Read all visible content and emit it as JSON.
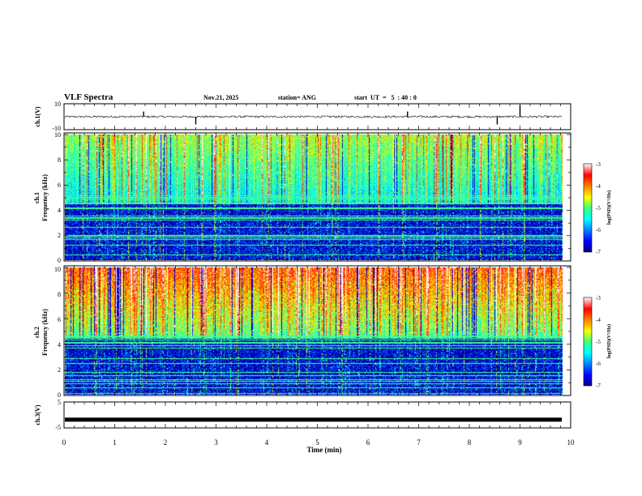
{
  "header": {
    "title": "VLF Spectra",
    "date": "Nov.21, 2025",
    "station": "station= ANG",
    "start": "start  UT  =   5  : 40 : 0"
  },
  "chart_data": [
    {
      "type": "line",
      "name": "ch1-waveform",
      "ylabel": "ch.1(V)",
      "ylim": [
        -10,
        10
      ],
      "yticks": [
        "10",
        "-10"
      ],
      "xlim": [
        0,
        10
      ],
      "baseline": 0,
      "spikes_min": [
        1.57,
        2.6,
        6.78,
        8.55,
        9.0
      ]
    },
    {
      "type": "heatmap",
      "name": "ch1-spectrogram",
      "ylabel": "ch.1",
      "ylabel2": "Frequency (kHz)",
      "ylim": [
        0,
        10
      ],
      "yticks": [
        "0",
        "2",
        "4",
        "6",
        "8",
        "10"
      ],
      "xlim": [
        0,
        9.83
      ],
      "colorbar": {
        "label": "log(PSD)(V²/Hz)",
        "range": [
          -7,
          -3
        ],
        "ticks": [
          "-3",
          "-4",
          "-5",
          "-6",
          "-7"
        ]
      }
    },
    {
      "type": "heatmap",
      "name": "ch2-spectrogram",
      "ylabel": "ch.2",
      "ylabel2": "Frequency (kHz)",
      "ylim": [
        0,
        10
      ],
      "yticks": [
        "0",
        "2",
        "4",
        "6",
        "8",
        "10"
      ],
      "xlim": [
        0,
        9.83
      ],
      "colorbar": {
        "label": "log(PSD)(V²/Hz)",
        "range": [
          -7,
          -3
        ],
        "ticks": [
          "-3",
          "-4",
          "-5",
          "-6",
          "-7"
        ]
      }
    },
    {
      "type": "line",
      "name": "ch3-waveform",
      "ylabel": "ch.3(V)",
      "ylim": [
        -5,
        5
      ],
      "yticks": [
        "5",
        "-5"
      ],
      "xlim": [
        0,
        10
      ],
      "baseline": -1.8
    }
  ],
  "xaxis": {
    "label": "Time (min)",
    "ticks": [
      "0",
      "1",
      "2",
      "3",
      "4",
      "5",
      "6",
      "7",
      "8",
      "9",
      "10"
    ]
  }
}
